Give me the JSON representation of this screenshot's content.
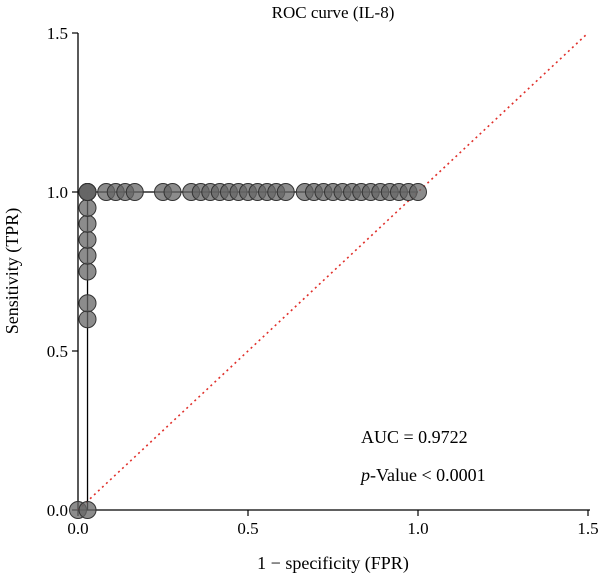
{
  "chart_data": {
    "type": "scatter",
    "title": "ROC curve (IL-8)",
    "xlabel": "1 − specificity (FPR)",
    "ylabel": "Sensitivity (TPR)",
    "xlim": [
      0,
      1.5
    ],
    "ylim": [
      0,
      1.5
    ],
    "xticks": [
      0,
      0.5,
      1,
      1.5
    ],
    "xtick_labels": [
      "0.0",
      "0.5",
      "1.0",
      "1.5"
    ],
    "yticks": [
      0,
      0.5,
      1,
      1.5
    ],
    "ytick_labels": [
      "0.0",
      "0.5",
      "1.0",
      "1.5"
    ],
    "grid": false,
    "legend": "none",
    "colors": {
      "points": "#666666",
      "curve": "#000000",
      "diagonal": "#e0302b"
    },
    "reference_line": {
      "style": "dotted",
      "from": [
        0,
        0
      ],
      "to": [
        1.5,
        1.5
      ]
    },
    "roc_curve": {
      "x": [
        0,
        0,
        0.028,
        0.028,
        1.0
      ],
      "y": [
        0,
        0,
        0,
        1.0,
        1.0
      ]
    },
    "series": [
      {
        "x": [
          0,
          0.028,
          0.028,
          0.028,
          0.028,
          0.028,
          0.028,
          0.028,
          0.028,
          0.028,
          0.028,
          0.028,
          0.028,
          0.083,
          0.111,
          0.139,
          0.167,
          0.25,
          0.278,
          0.333,
          0.361,
          0.389,
          0.417,
          0.444,
          0.472,
          0.5,
          0.528,
          0.556,
          0.583,
          0.611,
          0.667,
          0.694,
          0.722,
          0.75,
          0.778,
          0.806,
          0.833,
          0.861,
          0.889,
          0.917,
          0.944,
          0.972,
          1.0
        ],
        "y": [
          0,
          0,
          0.6,
          0.65,
          0.75,
          0.8,
          0.85,
          0.9,
          0.95,
          1.0,
          1.0,
          1.0,
          1.0,
          1.0,
          1.0,
          1.0,
          1.0,
          1.0,
          1.0,
          1.0,
          1.0,
          1.0,
          1.0,
          1.0,
          1.0,
          1.0,
          1.0,
          1.0,
          1.0,
          1.0,
          1.0,
          1.0,
          1.0,
          1.0,
          1.0,
          1.0,
          1.0,
          1.0,
          1.0,
          1.0,
          1.0,
          1.0,
          1.0
        ]
      }
    ],
    "annotations": {
      "auc": "AUC = 0.9722",
      "p_italic": "p",
      "p_rest": "-Value < 0.0001"
    }
  }
}
